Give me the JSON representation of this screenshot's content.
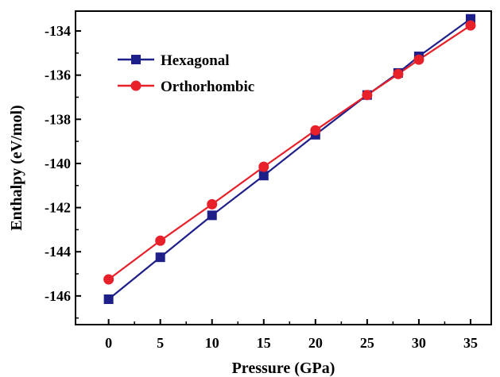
{
  "chart_data": {
    "type": "line",
    "title": "",
    "xlabel": "Pressure (GPa)",
    "ylabel": "Enthalpy (eV/mol)",
    "xlim": [
      -3.2,
      37
    ],
    "ylim": [
      -147.3,
      -133.1
    ],
    "xticks": [
      0,
      5,
      10,
      15,
      20,
      25,
      30,
      35
    ],
    "xtick_labels": [
      "0",
      "5",
      "10",
      "15",
      "20",
      "25",
      "30",
      "35"
    ],
    "yticks": [
      -146,
      -144,
      -142,
      -140,
      -138,
      -136,
      -134
    ],
    "ytick_labels": [
      "-146",
      "-144",
      "-142",
      "-140",
      "-138",
      "-136",
      "-134"
    ],
    "grid": false,
    "legend_position": "top-left",
    "series": [
      {
        "name": "Hexagonal",
        "color": "#1f1f8a",
        "marker": "square",
        "x": [
          0,
          5,
          10,
          15,
          20,
          25,
          28,
          30,
          35
        ],
        "y": [
          -146.15,
          -144.25,
          -142.35,
          -140.55,
          -138.7,
          -136.9,
          -135.9,
          -135.15,
          -133.45
        ]
      },
      {
        "name": "Orthorhombic",
        "color": "#e8202a",
        "marker": "circle",
        "x": [
          0,
          5,
          10,
          15,
          20,
          25,
          28,
          30,
          35
        ],
        "y": [
          -145.25,
          -143.5,
          -141.85,
          -140.15,
          -138.5,
          -136.9,
          -135.95,
          -135.3,
          -133.75
        ]
      }
    ]
  }
}
